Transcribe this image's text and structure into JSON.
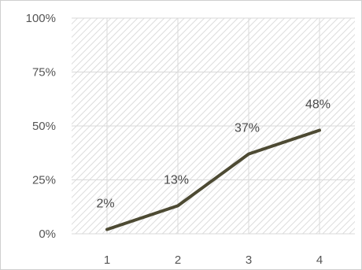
{
  "chart_data": {
    "type": "line",
    "x": [
      1,
      2,
      3,
      4
    ],
    "categories": [
      "1",
      "2",
      "3",
      "4"
    ],
    "series": [
      {
        "values": [
          0.02,
          0.13,
          0.37,
          0.48
        ]
      }
    ],
    "data_labels": [
      "2%",
      "13%",
      "37%",
      "48%"
    ],
    "yticks": [
      0,
      0.25,
      0.5,
      0.75,
      1.0
    ],
    "ytick_labels": [
      "0%",
      "25%",
      "50%",
      "75%",
      "100%"
    ],
    "ylim": [
      0,
      1
    ],
    "grid": true,
    "legend": "none",
    "title": "",
    "xlabel": "",
    "ylabel": ""
  },
  "colors": {
    "line": "#4d4a33",
    "grid": "#d9d9d9",
    "plot_hatch": "#dcdcdc",
    "text": "#555555"
  }
}
